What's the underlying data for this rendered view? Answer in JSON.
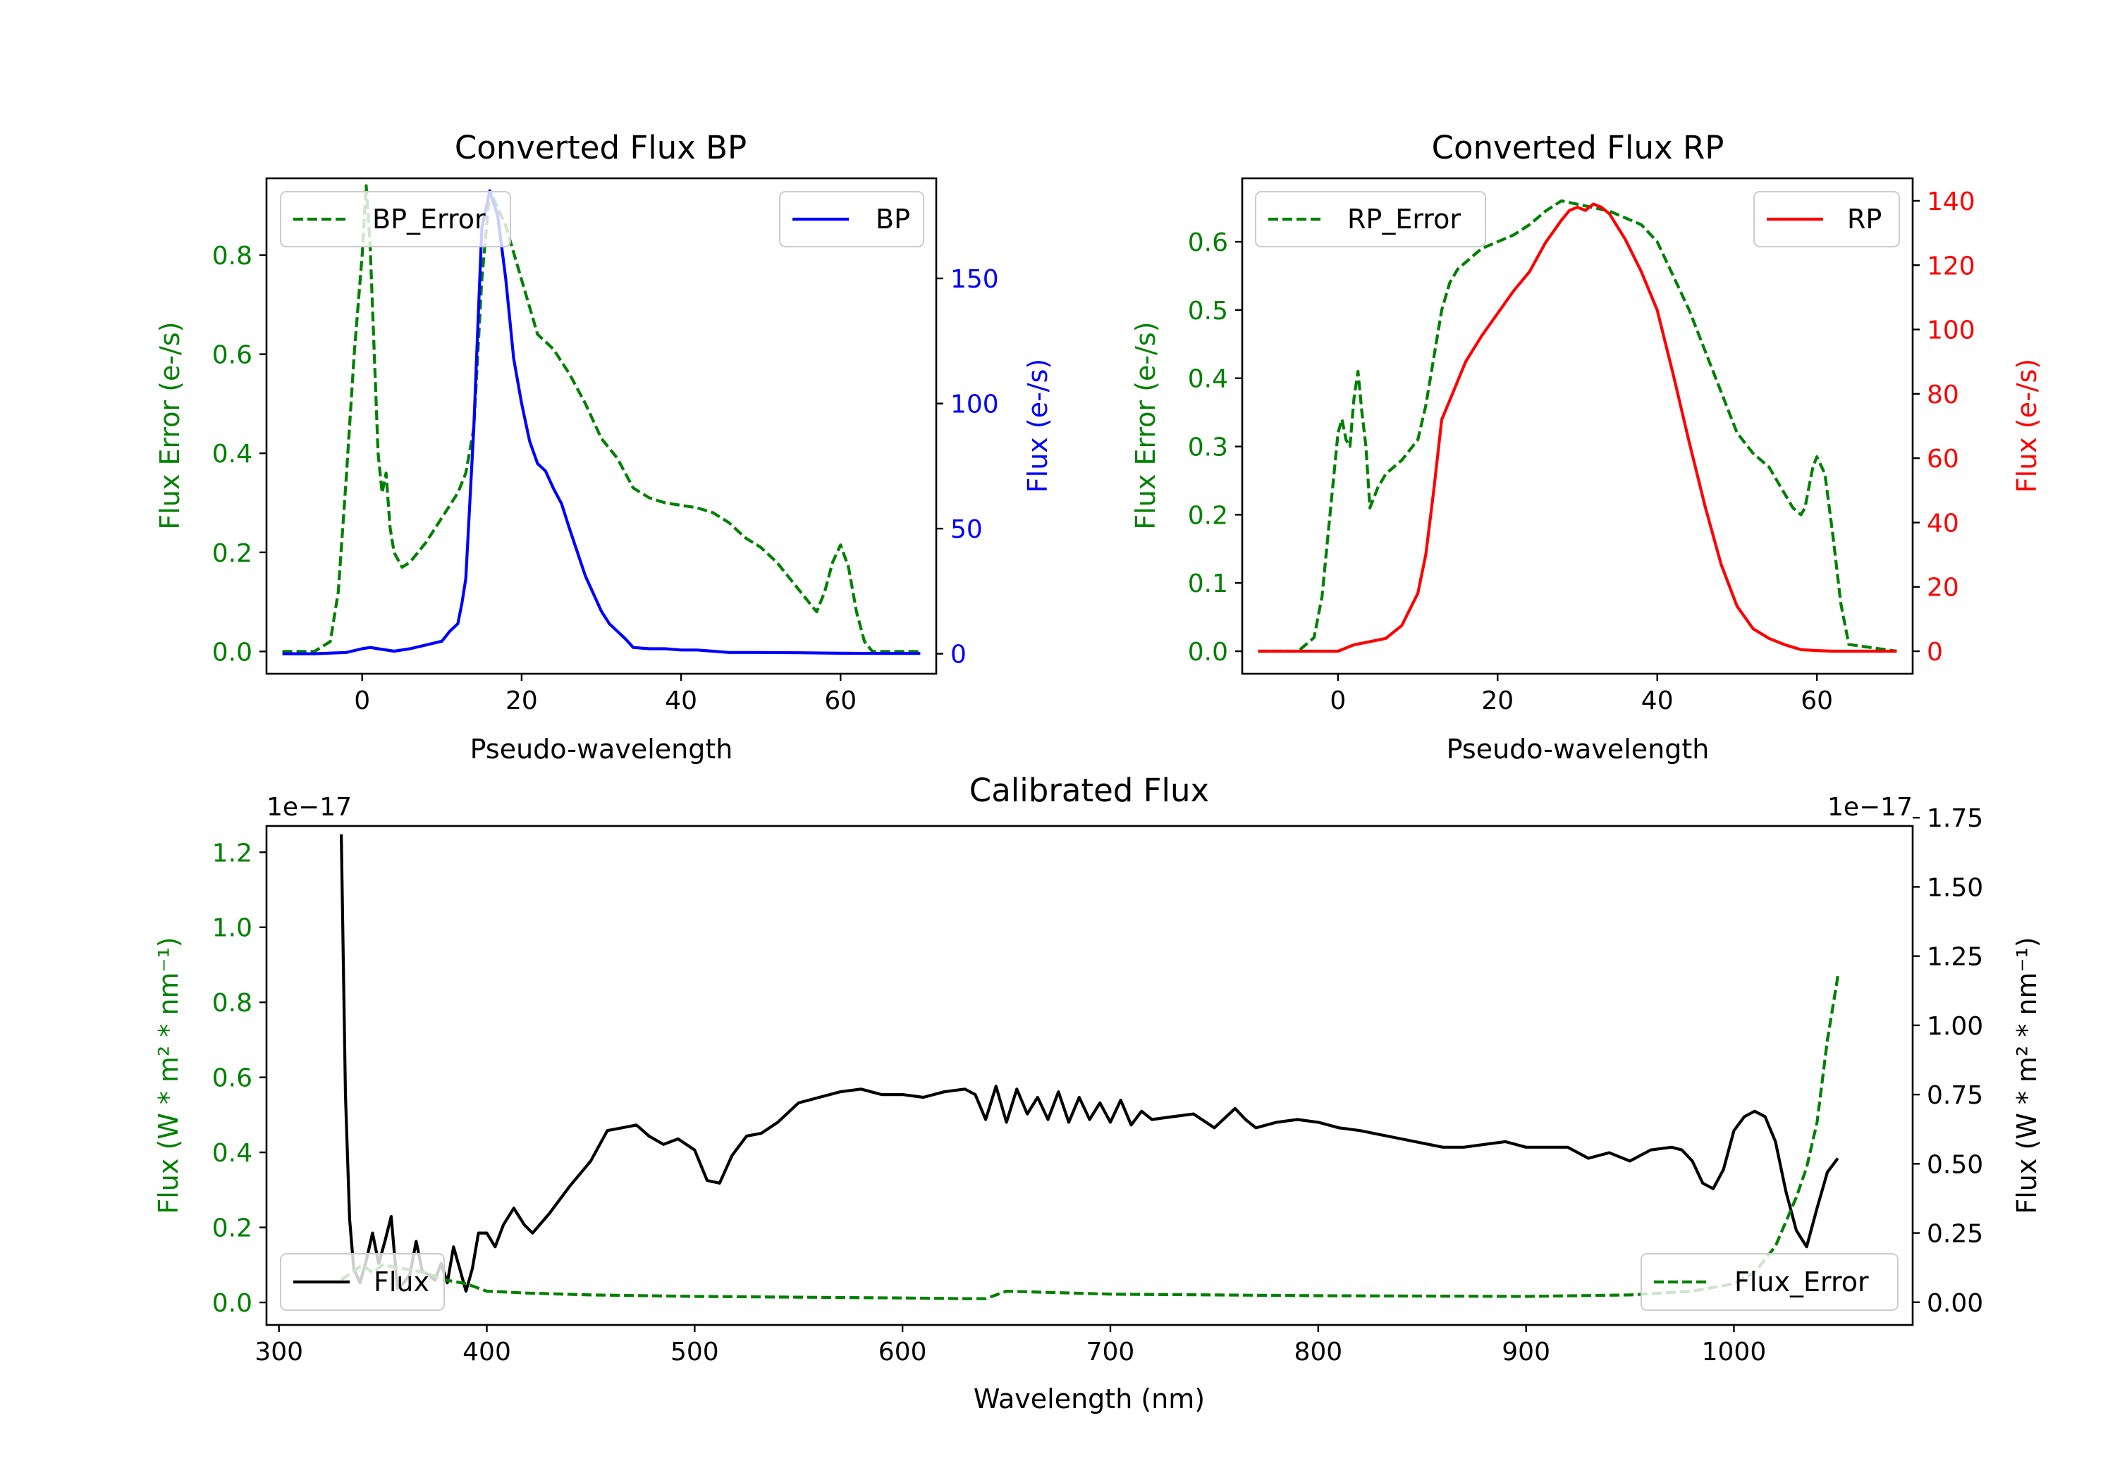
{
  "chart_data": [
    {
      "id": "bp",
      "type": "line",
      "title": "Converted Flux BP",
      "xlabel": "Pseudo-wavelength",
      "xlim": [
        -12,
        72
      ],
      "xticks": [
        0,
        20,
        40,
        60
      ],
      "left_axis": {
        "label": "Flux Error (e-/s)",
        "color": "#008000",
        "ylim": [
          -0.045,
          0.955
        ],
        "ticks": [
          0.0,
          0.2,
          0.4,
          0.6,
          0.8
        ],
        "tick_labels": [
          "0.0",
          "0.2",
          "0.4",
          "0.6",
          "0.8"
        ]
      },
      "right_axis": {
        "label": "Flux (e-/s)",
        "color": "#0000ff",
        "ylim": [
          -8,
          190
        ],
        "ticks": [
          0,
          50,
          100,
          150
        ],
        "tick_labels": [
          "0",
          "50",
          "100",
          "150"
        ]
      },
      "legends": [
        {
          "label": "BP_Error",
          "loc": "upper left",
          "color": "#008000",
          "dash": true
        },
        {
          "label": "BP",
          "loc": "upper right",
          "color": "#0000ff",
          "dash": false
        }
      ],
      "series": [
        {
          "name": "BP_Error",
          "axis": "left",
          "color": "#008000",
          "dash": true,
          "x": [
            -10,
            -6,
            -4,
            -3,
            -2,
            -1,
            0,
            0.5,
            1,
            2,
            2.5,
            3,
            3.5,
            4,
            5,
            6,
            8,
            10,
            12,
            13,
            14,
            15,
            16,
            18,
            20,
            22,
            24,
            26,
            28,
            30,
            32,
            34,
            36,
            38,
            40,
            42,
            44,
            46,
            48,
            50,
            52,
            54,
            56,
            57,
            58,
            59,
            60,
            61,
            62,
            63,
            64,
            66,
            70
          ],
          "values": [
            0.0,
            0.0,
            0.02,
            0.12,
            0.35,
            0.6,
            0.8,
            0.94,
            0.82,
            0.4,
            0.32,
            0.36,
            0.25,
            0.2,
            0.17,
            0.18,
            0.22,
            0.27,
            0.32,
            0.36,
            0.45,
            0.75,
            0.93,
            0.86,
            0.75,
            0.64,
            0.61,
            0.56,
            0.5,
            0.43,
            0.39,
            0.33,
            0.31,
            0.3,
            0.295,
            0.29,
            0.28,
            0.26,
            0.23,
            0.21,
            0.18,
            0.14,
            0.1,
            0.08,
            0.12,
            0.18,
            0.215,
            0.17,
            0.08,
            0.02,
            0.0,
            0.0,
            0.0
          ]
        },
        {
          "name": "BP",
          "axis": "right",
          "color": "#0000ff",
          "dash": false,
          "x": [
            -10,
            -6,
            -2,
            0,
            1,
            2,
            4,
            6,
            8,
            10,
            11,
            12,
            12.5,
            13,
            14,
            15,
            16,
            17,
            18,
            19,
            20,
            21,
            22,
            23,
            24,
            25,
            26,
            28,
            30,
            31,
            32,
            33,
            34,
            36,
            38,
            40,
            42,
            44,
            46,
            50,
            55,
            60,
            65,
            70
          ],
          "values": [
            0,
            0,
            0.5,
            2,
            2.5,
            2,
            1,
            2,
            3.5,
            5,
            9,
            12,
            20,
            30,
            90,
            170,
            185,
            175,
            150,
            118,
            100,
            85,
            76,
            73,
            66,
            60,
            50,
            31,
            17,
            12,
            9,
            6,
            2.5,
            2,
            2,
            1.5,
            1.5,
            1,
            0.5,
            0.5,
            0.4,
            0.2,
            0.1,
            0.1
          ]
        }
      ]
    },
    {
      "id": "rp",
      "type": "line",
      "title": "Converted Flux RP",
      "xlabel": "Pseudo-wavelength",
      "xlim": [
        -12,
        72
      ],
      "xticks": [
        0,
        20,
        40,
        60
      ],
      "left_axis": {
        "label": "Flux Error (e-/s)",
        "color": "#008000",
        "ylim": [
          -0.033,
          0.693
        ],
        "ticks": [
          0.0,
          0.1,
          0.2,
          0.3,
          0.4,
          0.5,
          0.6
        ],
        "tick_labels": [
          "0.0",
          "0.1",
          "0.2",
          "0.3",
          "0.4",
          "0.5",
          "0.6"
        ]
      },
      "right_axis": {
        "label": "Flux (e-/s)",
        "color": "#ff0000",
        "ylim": [
          -7,
          147
        ],
        "ticks": [
          0,
          20,
          40,
          60,
          80,
          100,
          120,
          140
        ],
        "tick_labels": [
          "0",
          "20",
          "40",
          "60",
          "80",
          "100",
          "120",
          "140"
        ]
      },
      "legends": [
        {
          "label": "RP_Error",
          "loc": "upper left",
          "color": "#008000",
          "dash": true
        },
        {
          "label": "RP",
          "loc": "upper right",
          "color": "#ff0000",
          "dash": false
        }
      ],
      "series": [
        {
          "name": "RP_Error",
          "axis": "left",
          "color": "#008000",
          "dash": true,
          "x": [
            -10,
            -5,
            -3,
            -2,
            -1,
            0,
            0.5,
            1,
            1.5,
            2,
            2.5,
            3,
            3.5,
            4,
            5,
            6,
            8,
            10,
            11,
            12,
            13,
            14,
            15,
            16,
            18,
            20,
            22,
            24,
            26,
            28,
            30,
            32,
            34,
            36,
            38,
            40,
            42,
            44,
            46,
            48,
            50,
            52,
            54,
            55,
            56,
            57,
            58,
            58.5,
            59,
            59.5,
            60,
            61,
            62,
            63,
            64,
            70
          ],
          "values": [
            0.0,
            0.0,
            0.02,
            0.08,
            0.2,
            0.32,
            0.34,
            0.31,
            0.3,
            0.37,
            0.41,
            0.35,
            0.3,
            0.21,
            0.24,
            0.26,
            0.28,
            0.31,
            0.36,
            0.43,
            0.5,
            0.54,
            0.56,
            0.57,
            0.59,
            0.6,
            0.61,
            0.625,
            0.645,
            0.66,
            0.655,
            0.65,
            0.645,
            0.635,
            0.625,
            0.6,
            0.55,
            0.5,
            0.44,
            0.38,
            0.32,
            0.29,
            0.27,
            0.25,
            0.23,
            0.21,
            0.2,
            0.21,
            0.24,
            0.27,
            0.285,
            0.26,
            0.17,
            0.07,
            0.01,
            0.0
          ]
        },
        {
          "name": "RP",
          "axis": "right",
          "color": "#ff0000",
          "dash": false,
          "x": [
            -10,
            -4,
            -2,
            0,
            2,
            4,
            6,
            8,
            10,
            11,
            12,
            13,
            14,
            16,
            18,
            20,
            22,
            24,
            26,
            28,
            29,
            30,
            31,
            32,
            33,
            34,
            36,
            38,
            40,
            42,
            44,
            46,
            48,
            50,
            52,
            54,
            56,
            58,
            60,
            62,
            64,
            70
          ],
          "values": [
            0,
            0,
            0,
            0,
            2,
            3,
            4,
            8,
            18,
            30,
            50,
            72,
            78,
            90,
            98,
            105,
            112,
            118,
            127,
            134,
            137,
            138,
            137,
            139,
            138,
            136,
            128,
            118,
            106,
            86,
            65,
            45,
            27,
            14,
            7,
            4,
            2,
            0.5,
            0.2,
            0,
            0,
            0
          ]
        }
      ]
    },
    {
      "id": "calibrated",
      "type": "line",
      "title": "Calibrated Flux",
      "xlabel": "Wavelength (nm)",
      "xlim": [
        294,
        1086
      ],
      "xticks": [
        300,
        400,
        500,
        600,
        700,
        800,
        900,
        1000
      ],
      "left_axis": {
        "label": "Flux (W * m² * nm⁻¹)",
        "color": "#008000",
        "ylim": [
          -0.06,
          1.27
        ],
        "ticks": [
          0.0,
          0.2,
          0.4,
          0.6,
          0.8,
          1.0,
          1.2
        ],
        "tick_labels": [
          "0.0",
          "0.2",
          "0.4",
          "0.6",
          "0.8",
          "1.0",
          "1.2"
        ],
        "offset_text": "1e−17"
      },
      "right_axis": {
        "label": "Flux (W * m² * nm⁻¹)",
        "color": "#000000",
        "ylim": [
          -0.082,
          1.72
        ],
        "ticks": [
          0.0,
          0.25,
          0.5,
          0.75,
          1.0,
          1.25,
          1.5,
          1.75
        ],
        "tick_labels": [
          "0.00",
          "0.25",
          "0.50",
          "0.75",
          "1.00",
          "1.25",
          "1.50",
          "1.75"
        ],
        "offset_text": "1e−17"
      },
      "legends": [
        {
          "label": "Flux",
          "loc": "lower left",
          "color": "#000000",
          "dash": false
        },
        {
          "label": "Flux_Error",
          "loc": "lower right",
          "color": "#008000",
          "dash": true
        }
      ],
      "series": [
        {
          "name": "Flux",
          "axis": "right",
          "color": "#000000",
          "dash": false,
          "x": [
            330,
            332,
            334,
            336,
            339,
            342,
            345,
            348,
            351,
            354,
            357,
            360,
            363,
            366,
            369,
            372,
            375,
            378,
            381,
            384,
            387,
            390,
            393,
            396,
            400,
            404,
            408,
            413,
            418,
            422,
            430,
            440,
            450,
            458,
            465,
            472,
            478,
            485,
            492,
            500,
            506,
            512,
            518,
            525,
            532,
            540,
            550,
            560,
            570,
            580,
            590,
            600,
            610,
            620,
            630,
            635,
            640,
            645,
            650,
            655,
            660,
            665,
            670,
            675,
            680,
            685,
            690,
            695,
            700,
            705,
            710,
            715,
            720,
            730,
            740,
            750,
            760,
            765,
            770,
            780,
            790,
            800,
            810,
            820,
            840,
            860,
            870,
            880,
            890,
            900,
            910,
            920,
            930,
            940,
            950,
            960,
            970,
            975,
            980,
            985,
            990,
            995,
            1000,
            1005,
            1010,
            1015,
            1020,
            1025,
            1030,
            1035,
            1040,
            1045,
            1050
          ],
          "values": [
            1.69,
            0.75,
            0.3,
            0.12,
            0.07,
            0.15,
            0.25,
            0.14,
            0.22,
            0.31,
            0.05,
            0.07,
            0.1,
            0.22,
            0.11,
            0.1,
            0.08,
            0.14,
            0.07,
            0.2,
            0.12,
            0.04,
            0.12,
            0.25,
            0.25,
            0.2,
            0.28,
            0.34,
            0.28,
            0.25,
            0.32,
            0.42,
            0.51,
            0.62,
            0.63,
            0.64,
            0.6,
            0.57,
            0.59,
            0.55,
            0.44,
            0.43,
            0.53,
            0.6,
            0.61,
            0.65,
            0.72,
            0.74,
            0.76,
            0.77,
            0.75,
            0.75,
            0.74,
            0.76,
            0.77,
            0.75,
            0.66,
            0.78,
            0.65,
            0.77,
            0.68,
            0.74,
            0.66,
            0.76,
            0.65,
            0.74,
            0.66,
            0.72,
            0.65,
            0.73,
            0.64,
            0.69,
            0.66,
            0.67,
            0.68,
            0.63,
            0.7,
            0.66,
            0.63,
            0.65,
            0.66,
            0.65,
            0.63,
            0.62,
            0.59,
            0.56,
            0.56,
            0.57,
            0.58,
            0.56,
            0.56,
            0.56,
            0.52,
            0.54,
            0.51,
            0.55,
            0.56,
            0.55,
            0.51,
            0.43,
            0.41,
            0.48,
            0.62,
            0.67,
            0.69,
            0.67,
            0.58,
            0.4,
            0.26,
            0.2,
            0.34,
            0.47,
            0.52
          ]
        },
        {
          "name": "Flux_Error",
          "axis": "left",
          "color": "#008000",
          "dash": true,
          "x": [
            330,
            335,
            340,
            345,
            350,
            360,
            370,
            380,
            390,
            400,
            420,
            450,
            500,
            550,
            600,
            630,
            640,
            650,
            700,
            800,
            900,
            950,
            980,
            1000,
            1010,
            1020,
            1030,
            1035,
            1040,
            1045,
            1050
          ],
          "values": [
            0.06,
            0.08,
            0.1,
            0.08,
            0.1,
            0.09,
            0.08,
            0.06,
            0.05,
            0.03,
            0.025,
            0.02,
            0.016,
            0.014,
            0.012,
            0.01,
            0.01,
            0.03,
            0.022,
            0.018,
            0.016,
            0.02,
            0.03,
            0.05,
            0.08,
            0.15,
            0.28,
            0.36,
            0.48,
            0.7,
            0.87
          ]
        }
      ]
    }
  ]
}
